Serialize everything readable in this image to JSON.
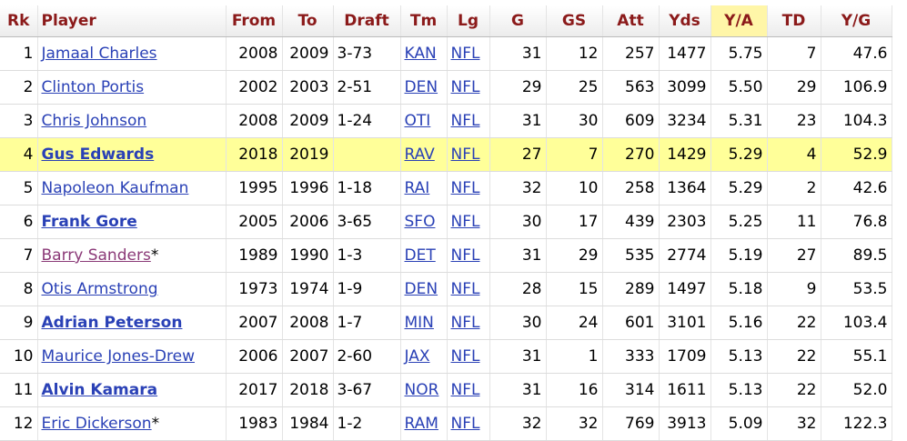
{
  "columns": [
    "Rk",
    "Player",
    "From",
    "To",
    "Draft",
    "Tm",
    "Lg",
    "G",
    "GS",
    "Att",
    "Yds",
    "Y/A",
    "TD",
    "Y/G"
  ],
  "sorted_column": "Y/A",
  "rows": [
    {
      "rk": "1",
      "player": "Jamaal Charles",
      "hof": "",
      "from": "2008",
      "to": "2009",
      "draft": "3-73",
      "tm": "KAN",
      "lg": "NFL",
      "g": "31",
      "gs": "12",
      "att": "257",
      "yds": "1477",
      "ya": "5.75",
      "td": "7",
      "yg": "47.6"
    },
    {
      "rk": "2",
      "player": "Clinton Portis",
      "hof": "",
      "from": "2002",
      "to": "2003",
      "draft": "2-51",
      "tm": "DEN",
      "lg": "NFL",
      "g": "29",
      "gs": "25",
      "att": "563",
      "yds": "3099",
      "ya": "5.50",
      "td": "29",
      "yg": "106.9"
    },
    {
      "rk": "3",
      "player": "Chris Johnson",
      "hof": "",
      "from": "2008",
      "to": "2009",
      "draft": "1-24",
      "tm": "OTI",
      "lg": "NFL",
      "g": "31",
      "gs": "30",
      "att": "609",
      "yds": "3234",
      "ya": "5.31",
      "td": "23",
      "yg": "104.3"
    },
    {
      "rk": "4",
      "player": "Gus Edwards",
      "hof": "",
      "from": "2018",
      "to": "2019",
      "draft": "",
      "tm": "RAV",
      "lg": "NFL",
      "g": "27",
      "gs": "7",
      "att": "270",
      "yds": "1429",
      "ya": "5.29",
      "td": "4",
      "yg": "52.9"
    },
    {
      "rk": "5",
      "player": "Napoleon Kaufman",
      "hof": "",
      "from": "1995",
      "to": "1996",
      "draft": "1-18",
      "tm": "RAI",
      "lg": "NFL",
      "g": "32",
      "gs": "10",
      "att": "258",
      "yds": "1364",
      "ya": "5.29",
      "td": "2",
      "yg": "42.6"
    },
    {
      "rk": "6",
      "player": "Frank Gore",
      "hof": "",
      "from": "2005",
      "to": "2006",
      "draft": "3-65",
      "tm": "SFO",
      "lg": "NFL",
      "g": "30",
      "gs": "17",
      "att": "439",
      "yds": "2303",
      "ya": "5.25",
      "td": "11",
      "yg": "76.8"
    },
    {
      "rk": "7",
      "player": "Barry Sanders",
      "hof": "*",
      "from": "1989",
      "to": "1990",
      "draft": "1-3",
      "tm": "DET",
      "lg": "NFL",
      "g": "31",
      "gs": "29",
      "att": "535",
      "yds": "2774",
      "ya": "5.19",
      "td": "27",
      "yg": "89.5"
    },
    {
      "rk": "8",
      "player": "Otis Armstrong",
      "hof": "",
      "from": "1973",
      "to": "1974",
      "draft": "1-9",
      "tm": "DEN",
      "lg": "NFL",
      "g": "28",
      "gs": "15",
      "att": "289",
      "yds": "1497",
      "ya": "5.18",
      "td": "9",
      "yg": "53.5"
    },
    {
      "rk": "9",
      "player": "Adrian Peterson",
      "hof": "",
      "from": "2007",
      "to": "2008",
      "draft": "1-7",
      "tm": "MIN",
      "lg": "NFL",
      "g": "30",
      "gs": "24",
      "att": "601",
      "yds": "3101",
      "ya": "5.16",
      "td": "22",
      "yg": "103.4"
    },
    {
      "rk": "10",
      "player": "Maurice Jones-Drew",
      "hof": "",
      "from": "2006",
      "to": "2007",
      "draft": "2-60",
      "tm": "JAX",
      "lg": "NFL",
      "g": "31",
      "gs": "1",
      "att": "333",
      "yds": "1709",
      "ya": "5.13",
      "td": "22",
      "yg": "55.1"
    },
    {
      "rk": "11",
      "player": "Alvin Kamara",
      "hof": "",
      "from": "2017",
      "to": "2018",
      "draft": "3-67",
      "tm": "NOR",
      "lg": "NFL",
      "g": "31",
      "gs": "16",
      "att": "314",
      "yds": "1611",
      "ya": "5.13",
      "td": "22",
      "yg": "52.0"
    },
    {
      "rk": "12",
      "player": "Eric Dickerson",
      "hof": "*",
      "from": "1983",
      "to": "1984",
      "draft": "1-2",
      "tm": "RAM",
      "lg": "NFL",
      "g": "32",
      "gs": "32",
      "att": "769",
      "yds": "3913",
      "ya": "5.09",
      "td": "32",
      "yg": "122.3"
    }
  ],
  "colors": {
    "header_text": "#8b1a1a",
    "link": "#2a41b6",
    "visited_link": "#8b3a78",
    "highlight_row": "#ffff99",
    "sorted_header": "#fff6a8"
  }
}
